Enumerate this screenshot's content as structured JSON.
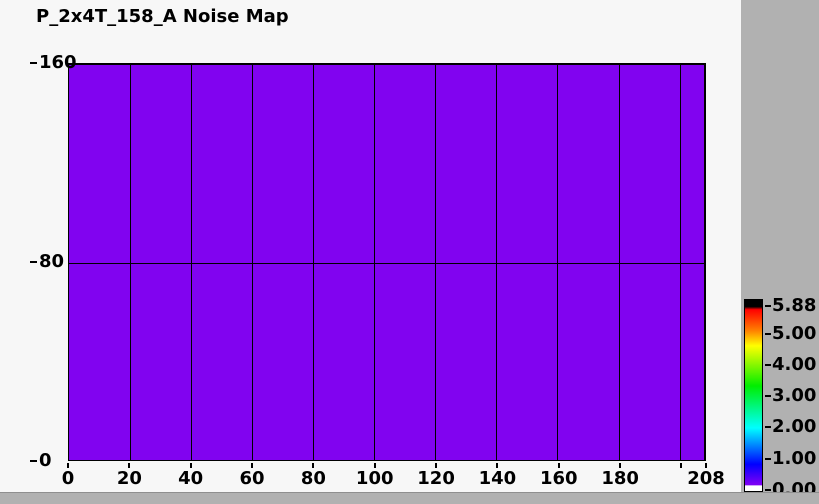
{
  "window": {
    "background_color": "#f7f7f7",
    "panel_color": "#b1b1b1"
  },
  "chart_data": {
    "type": "heatmap",
    "title": "P_2x4T_158_A Noise Map",
    "xlabel": "",
    "ylabel": "",
    "x_range": [
      0,
      208
    ],
    "y_range": [
      0,
      160
    ],
    "grid": true,
    "map_uniform": true,
    "map_fill_color": "#8103f0",
    "x_gridlines": [
      20,
      40,
      60,
      80,
      100,
      120,
      140,
      160,
      180,
      200
    ],
    "y_gridlines": [
      80
    ],
    "x_ticks": [
      {
        "v": 0,
        "label": "0"
      },
      {
        "v": 20,
        "label": "20"
      },
      {
        "v": 40,
        "label": "40"
      },
      {
        "v": 60,
        "label": "60"
      },
      {
        "v": 80,
        "label": "80"
      },
      {
        "v": 100,
        "label": "100"
      },
      {
        "v": 120,
        "label": "120"
      },
      {
        "v": 140,
        "label": "140"
      },
      {
        "v": 160,
        "label": "160"
      },
      {
        "v": 180,
        "label": "180"
      },
      {
        "v": 200,
        "label": ""
      },
      {
        "v": 208,
        "label": "208"
      }
    ],
    "y_ticks": [
      {
        "v": 160,
        "label": "160"
      },
      {
        "v": 80,
        "label": "80"
      },
      {
        "v": 0,
        "label": "0"
      }
    ],
    "colorbar": {
      "position": "right",
      "min": 0.0,
      "max": 5.88,
      "ticks": [
        {
          "v": 5.88,
          "label": "5.88"
        },
        {
          "v": 5.0,
          "label": "5.00"
        },
        {
          "v": 4.0,
          "label": "4.00"
        },
        {
          "v": 3.0,
          "label": "3.00"
        },
        {
          "v": 2.0,
          "label": "2.00"
        },
        {
          "v": 1.0,
          "label": "1.00"
        },
        {
          "v": 0.0,
          "label": "0.00"
        }
      ],
      "gradient_stops_top_to_bottom": [
        {
          "at": 0.0,
          "color": "#000000"
        },
        {
          "at": 0.035,
          "color": "#000000"
        },
        {
          "at": 0.05,
          "color": "#ff0000"
        },
        {
          "at": 0.16,
          "color": "#ff8000"
        },
        {
          "at": 0.24,
          "color": "#ffff00"
        },
        {
          "at": 0.45,
          "color": "#00ee00"
        },
        {
          "at": 0.67,
          "color": "#00ffff"
        },
        {
          "at": 0.86,
          "color": "#0000ff"
        },
        {
          "at": 0.962,
          "color": "#7a00f5"
        },
        {
          "at": 0.968,
          "color": "#7a00f5"
        },
        {
          "at": 0.973,
          "color": "#ffffff"
        },
        {
          "at": 1.0,
          "color": "#ffffff"
        }
      ]
    }
  }
}
